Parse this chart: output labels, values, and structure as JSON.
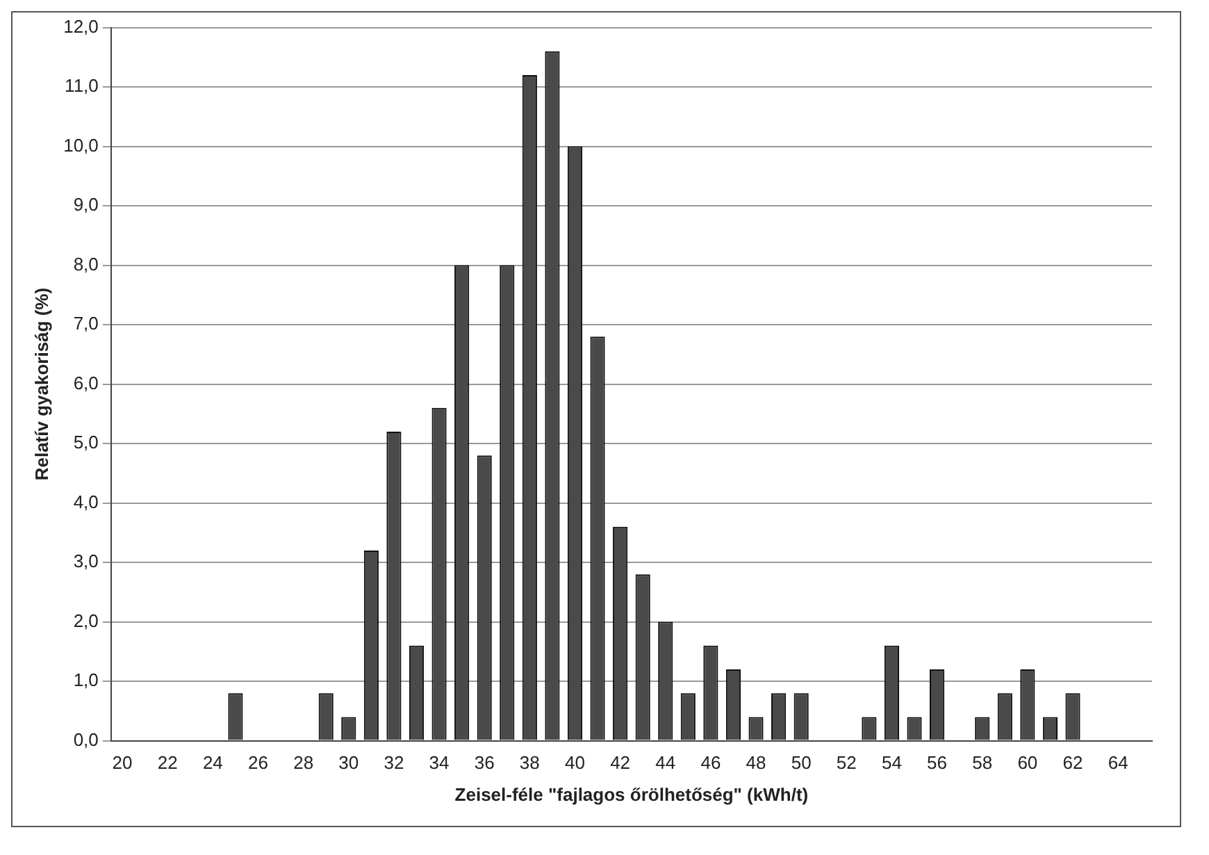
{
  "chart_data": {
    "type": "bar",
    "xlabel": "Zeisel-féle \"fajlagos őrölhetőség\" (kWh/t)",
    "ylabel": "Relatív gyakoriság (%)",
    "categories": [
      "20",
      null,
      "22",
      null,
      "24",
      null,
      "26",
      null,
      "28",
      null,
      "30",
      null,
      "32",
      null,
      "34",
      null,
      "36",
      null,
      "38",
      null,
      "40",
      null,
      "42",
      null,
      "44",
      null,
      "46",
      null,
      "48",
      null,
      "50",
      null,
      "52",
      null,
      "54",
      null,
      "56",
      null,
      "58",
      null,
      "60",
      null,
      "62",
      null,
      "64",
      null
    ],
    "values": [
      0,
      0,
      0,
      0,
      0,
      0.8,
      0,
      0,
      0,
      0.8,
      0.4,
      3.2,
      5.2,
      1.6,
      5.6,
      8.0,
      4.8,
      8.0,
      11.2,
      11.6,
      10.0,
      6.8,
      3.6,
      2.8,
      2.0,
      0.8,
      1.6,
      1.2,
      0.4,
      0.8,
      0.8,
      0,
      0,
      0.4,
      1.6,
      0.4,
      1.2,
      0,
      0.4,
      0.8,
      1.2,
      0.4,
      0.8,
      0,
      0,
      0
    ],
    "color": "#4a4a4a",
    "ylim": [
      0,
      12
    ],
    "yticks": [
      {
        "value": 0,
        "label": "0,0"
      },
      {
        "value": 1,
        "label": "1,0"
      },
      {
        "value": 2,
        "label": "2,0"
      },
      {
        "value": 3,
        "label": "3,0"
      },
      {
        "value": 4,
        "label": "4,0"
      },
      {
        "value": 5,
        "label": "5,0"
      },
      {
        "value": 6,
        "label": "6,0"
      },
      {
        "value": 7,
        "label": "7,0"
      },
      {
        "value": 8,
        "label": "8,0"
      },
      {
        "value": 9,
        "label": "9,0"
      },
      {
        "value": 10,
        "label": "10,0"
      },
      {
        "value": 11,
        "label": "11,0"
      },
      {
        "value": 12,
        "label": "12,0"
      }
    ],
    "grid": "y"
  }
}
